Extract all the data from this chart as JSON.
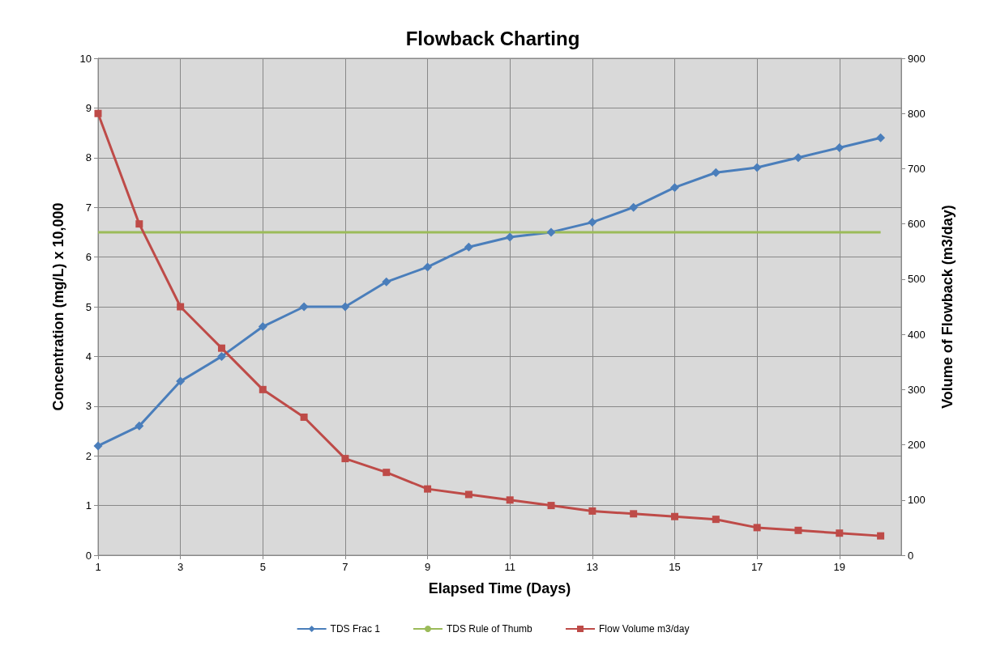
{
  "chart_data": {
    "type": "line",
    "title": "Flowback Charting",
    "xlabel": "Elapsed Time (Days)",
    "ylabel": "Concentration (mg/L) x 10,000",
    "y2label": "Volume of Flowback (m3/day)",
    "x": [
      1,
      2,
      3,
      4,
      5,
      6,
      7,
      8,
      9,
      10,
      11,
      12,
      13,
      14,
      15,
      16,
      17,
      18,
      19,
      20
    ],
    "xlim": [
      1,
      20.5
    ],
    "xticks": [
      1,
      3,
      5,
      7,
      9,
      11,
      13,
      15,
      17,
      19
    ],
    "ylim": [
      0,
      10
    ],
    "yticks": [
      0,
      1,
      2,
      3,
      4,
      5,
      6,
      7,
      8,
      9,
      10
    ],
    "y2lim": [
      0,
      900
    ],
    "y2ticks": [
      0,
      100,
      200,
      300,
      400,
      500,
      600,
      700,
      800,
      900
    ],
    "grid": true,
    "legend": "bottom",
    "series": [
      {
        "name": "TDS Frac 1",
        "color": "#4a7ebb",
        "marker": "diamond",
        "values": [
          2.2,
          2.6,
          3.5,
          4.0,
          4.6,
          5.0,
          5.0,
          5.5,
          5.8,
          6.2,
          6.4,
          6.5,
          6.7,
          7.0,
          7.4,
          7.7,
          7.8,
          8.0,
          8.2,
          8.4
        ]
      },
      {
        "name": "TDS Rule of Thumb",
        "color": "#9bbb59",
        "marker": "none",
        "values": [
          6.5,
          6.5,
          6.5,
          6.5,
          6.5,
          6.5,
          6.5,
          6.5,
          6.5,
          6.5,
          6.5,
          6.5,
          6.5,
          6.5,
          6.5,
          6.5,
          6.5,
          6.5,
          6.5,
          6.5
        ]
      },
      {
        "name": "Flow Volume m3/day",
        "color": "#be4b48",
        "marker": "square",
        "axis": "y2",
        "values": [
          800,
          600,
          450,
          375,
          300,
          250,
          175,
          150,
          120,
          110,
          100,
          90,
          80,
          75,
          70,
          65,
          50,
          45,
          40,
          35
        ]
      }
    ]
  }
}
